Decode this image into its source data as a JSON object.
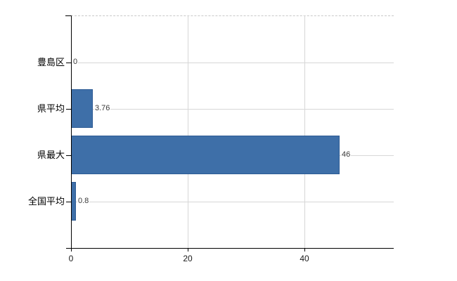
{
  "chart_data": {
    "type": "bar",
    "orientation": "horizontal",
    "title": "",
    "xlabel": "",
    "ylabel": "",
    "categories": [
      "豊島区",
      "県平均",
      "県最大",
      "全国平均"
    ],
    "values": [
      0,
      3.76,
      46,
      0.8
    ],
    "value_labels": [
      "0",
      "3.76",
      "46",
      "0.8"
    ],
    "x_ticks": [
      0,
      20,
      40
    ],
    "x_tick_labels": [
      "0",
      "20",
      "40"
    ],
    "xlim": [
      0,
      55.3
    ],
    "grid": true,
    "legend_position": "none",
    "colors": {
      "bar": "#3e6fa8",
      "bar_border": "#2d5b94",
      "grid": "#d7d7d7",
      "plot_top_border": "#c8c8c8",
      "axis": "#000000",
      "value_label": "#3a3a3a",
      "tick_label": "#1a1a1a"
    }
  }
}
